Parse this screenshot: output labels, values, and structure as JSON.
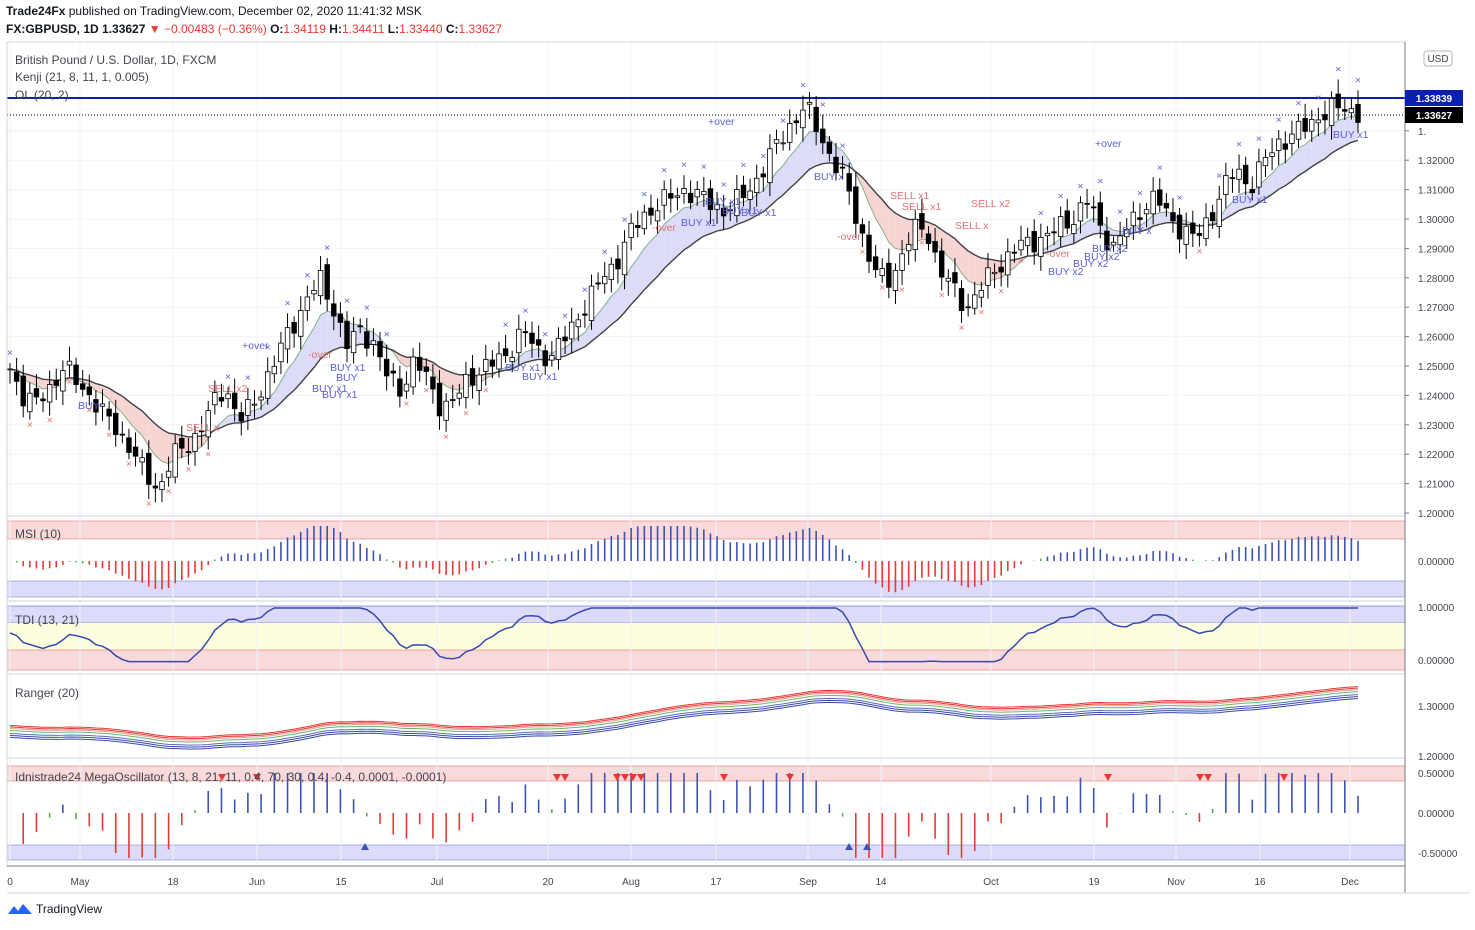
{
  "header": {
    "publisher": "Trade24Fx",
    "published_text": "published on TradingView.com, December 02, 2020 11:41:32 MSK",
    "symbol": "FX:GBPUSD, 1D",
    "last": "1.33627",
    "change": "▼ −0.00483 (−0.36%)",
    "o_label": "O:",
    "o_value": "1.34119",
    "h_label": "H:",
    "h_value": "1.34411",
    "l_label": "L:",
    "l_value": "1.33440",
    "c_label": "C:",
    "c_value": "1.33627"
  },
  "legend": {
    "main": "British Pound / U.S. Dollar, 1D, FXCM",
    "kenji": "Kenji (21, 8, 11, 1, 0.005)",
    "ol": "OL (20, 2)",
    "msi": "MSI (10)",
    "tdi": "TDI (13, 21)",
    "ranger": "Ranger (20)",
    "mega": "Idnistrade24 MegaOscillator (13, 8, 21, 11, 0.4, 70, 30, 0.4, -0.4, 0.0001, -0.0001)"
  },
  "price_axis": {
    "currency": "USD",
    "labels": [
      "1.",
      "1.32000",
      "1.31000",
      "1.30000",
      "1.29000",
      "1.28000",
      "1.27000",
      "1.26000",
      "1.25000",
      "1.24000",
      "1.23000",
      "1.22000",
      "1.21000",
      "1.20000"
    ],
    "tag_high": "1.33839",
    "tag_last": "1.33627",
    "msi_labels": [
      "0.00000"
    ],
    "tdi_labels": [
      "1.00000",
      "0.00000"
    ],
    "ranger_labels": [
      "1.30000",
      "1.20000"
    ],
    "mega_labels": [
      "0.50000",
      "0.00000",
      "-0.50000"
    ]
  },
  "time_axis": [
    "0",
    "May",
    "18",
    "Jun",
    "15",
    "Jul",
    "20",
    "Aug",
    "17",
    "Sep",
    "14",
    "Oct",
    "19",
    "Nov",
    "16",
    "Dec"
  ],
  "signals": [
    {
      "text": "BUY",
      "color": "#5b5fd6"
    },
    {
      "text": "SELL x2",
      "color": "#e57373"
    },
    {
      "text": "SELL x",
      "color": "#e57373"
    },
    {
      "text": "+over",
      "color": "#5b5fd6"
    },
    {
      "text": "-over",
      "color": "#e57373"
    },
    {
      "text": "BUY x1",
      "color": "#5b5fd6"
    },
    {
      "text": "BUY",
      "color": "#5b5fd6"
    },
    {
      "text": "BUY x1",
      "color": "#5b5fd6"
    },
    {
      "text": "BUY x1",
      "color": "#5b5fd6"
    },
    {
      "text": "BUY x1",
      "color": "#5b5fd6"
    },
    {
      "text": "BUY x1",
      "color": "#5b5fd6"
    },
    {
      "text": "+over",
      "color": "#5b5fd6"
    },
    {
      "text": "-over",
      "color": "#e57373"
    },
    {
      "text": "BUY x1",
      "color": "#5b5fd6"
    },
    {
      "text": "BUY x1",
      "color": "#5b5fd6"
    },
    {
      "text": "BUY x1",
      "color": "#5b5fd6"
    },
    {
      "text": "BUY x1",
      "color": "#5b5fd6"
    },
    {
      "text": "BUY x",
      "color": "#5b5fd6"
    },
    {
      "text": "SELL x1",
      "color": "#e57373"
    },
    {
      "text": "SELL x1",
      "color": "#e57373"
    },
    {
      "text": "SELL x2",
      "color": "#e57373"
    },
    {
      "text": "SELL x",
      "color": "#e57373"
    },
    {
      "text": "-over",
      "color": "#e57373"
    },
    {
      "text": "+over",
      "color": "#5b5fd6"
    },
    {
      "text": "-over",
      "color": "#e57373"
    },
    {
      "text": "BUY x2",
      "color": "#5b5fd6"
    },
    {
      "text": "BUY x2",
      "color": "#5b5fd6"
    },
    {
      "text": "BUY x2",
      "color": "#5b5fd6"
    },
    {
      "text": "BUY x2",
      "color": "#5b5fd6"
    },
    {
      "text": "BUY x",
      "color": "#5b5fd6"
    },
    {
      "text": "BUY x1",
      "color": "#5b5fd6"
    },
    {
      "text": "BUY x1",
      "color": "#5b5fd6"
    }
  ],
  "footer": {
    "brand": "TradingView"
  },
  "colors": {
    "bull": "#ffffff",
    "bear": "#000000",
    "outline": "#000000",
    "kenji_fill": "#dcdcf8",
    "kenji_fill_sell": "#f7d4d4",
    "kenji_line": "#424242",
    "ol_line": "#0a1fb0",
    "buy": "#5b5fd6",
    "sell": "#e57373",
    "zone_red": "#f9dada",
    "zone_blue": "#dcdcfa",
    "zone_yellow": "#fdfde0"
  },
  "chart_data": {
    "type": "candlestick",
    "title": "British Pound / U.S. Dollar, 1D, FXCM",
    "x_ticks": [
      "May",
      "18",
      "Jun",
      "15",
      "Jul",
      "20",
      "Aug",
      "17",
      "Sep",
      "14",
      "Oct",
      "19",
      "Nov",
      "16",
      "Dec"
    ],
    "ylim": [
      1.2,
      1.345
    ],
    "closes_approx": [
      1.249,
      1.24,
      1.237,
      1.243,
      1.25,
      1.244,
      1.24,
      1.233,
      1.228,
      1.222,
      1.213,
      1.208,
      1.219,
      1.222,
      1.228,
      1.236,
      1.243,
      1.232,
      1.236,
      1.246,
      1.255,
      1.264,
      1.273,
      1.279,
      1.27,
      1.257,
      1.262,
      1.258,
      1.246,
      1.242,
      1.252,
      1.245,
      1.236,
      1.238,
      1.246,
      1.249,
      1.251,
      1.255,
      1.262,
      1.256,
      1.253,
      1.258,
      1.266,
      1.273,
      1.28,
      1.286,
      1.295,
      1.301,
      1.305,
      1.307,
      1.31,
      1.308,
      1.305,
      1.303,
      1.306,
      1.311,
      1.318,
      1.326,
      1.333,
      1.338,
      1.33,
      1.32,
      1.312,
      1.298,
      1.283,
      1.278,
      1.286,
      1.296,
      1.297,
      1.282,
      1.276,
      1.27,
      1.276,
      1.283,
      1.287,
      1.291,
      1.293,
      1.294,
      1.298,
      1.301,
      1.306,
      1.296,
      1.29,
      1.298,
      1.304,
      1.307,
      1.301,
      1.296,
      1.293,
      1.301,
      1.31,
      1.317,
      1.311,
      1.319,
      1.326,
      1.328,
      1.331,
      1.335,
      1.337,
      1.338,
      1.336
    ],
    "overlays": [
      "Kenji (21, 8, 11, 1, 0.005)",
      "OL (20, 2)"
    ],
    "level_lines": [
      1.33839,
      1.33627
    ],
    "subpanes": [
      {
        "name": "MSI (10)",
        "type": "histogram",
        "ylim": [
          -0.1,
          0.1
        ]
      },
      {
        "name": "TDI (13, 21)",
        "type": "line",
        "ylim": [
          -0.1,
          1.1
        ]
      },
      {
        "name": "Ranger (20)",
        "type": "bands",
        "ylim": [
          1.19,
          1.35
        ]
      },
      {
        "name": "Idnistrade24 MegaOscillator (13, 8, 21, 11, 0.4, 70, 30, 0.4, -0.4, 0.0001, -0.0001)",
        "type": "histogram",
        "ylim": [
          -0.6,
          0.6
        ]
      }
    ]
  }
}
